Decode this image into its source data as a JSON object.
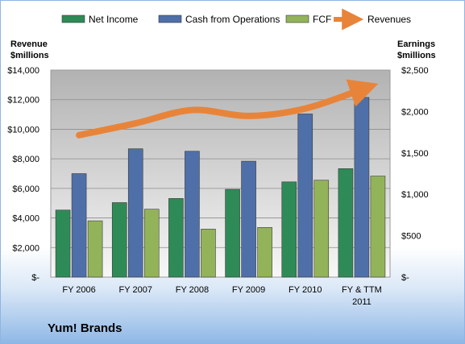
{
  "company_label": "Yum! Brands",
  "colors": {
    "net_income": "#2e8b57",
    "cash_ops": "#4f6fa8",
    "fcf": "#93b35a",
    "revenues": "#e8843a"
  },
  "chart_data": {
    "type": "bar",
    "categories": [
      "FY 2006",
      "FY 2007",
      "FY 2008",
      "FY 2009",
      "FY 2010",
      "FY & TTM 2011"
    ],
    "series": [
      {
        "name": "Net Income",
        "axis": "right",
        "kind": "bar",
        "values": [
          810,
          900,
          950,
          1060,
          1150,
          1310
        ]
      },
      {
        "name": "Cash from Operations",
        "axis": "right",
        "kind": "bar",
        "values": [
          1250,
          1550,
          1520,
          1400,
          1970,
          2170
        ]
      },
      {
        "name": "FCF",
        "axis": "right",
        "kind": "bar",
        "values": [
          680,
          820,
          580,
          600,
          1170,
          1220
        ]
      },
      {
        "name": "Revenues",
        "axis": "left",
        "kind": "line",
        "values": [
          9600,
          10400,
          11300,
          10900,
          11400,
          12700
        ]
      }
    ],
    "left_axis": {
      "label_line1": "Revenue",
      "label_line2": "$millions",
      "ylim": [
        0,
        14000
      ],
      "ticks": [
        {
          "value": 0,
          "label": "$-"
        },
        {
          "value": 2000,
          "label": "$2,000"
        },
        {
          "value": 4000,
          "label": "$4,000"
        },
        {
          "value": 6000,
          "label": "$6,000"
        },
        {
          "value": 8000,
          "label": "$8,000"
        },
        {
          "value": 10000,
          "label": "$10,000"
        },
        {
          "value": 12000,
          "label": "$12,000"
        },
        {
          "value": 14000,
          "label": "$14,000"
        }
      ]
    },
    "right_axis": {
      "label_line1": "Earnings",
      "label_line2": "$millions",
      "ylim": [
        0,
        2500
      ],
      "ticks": [
        {
          "value": 0,
          "label": "$-"
        },
        {
          "value": 500,
          "label": "$500"
        },
        {
          "value": 1000,
          "label": "$1,000"
        },
        {
          "value": 1500,
          "label": "$1,500"
        },
        {
          "value": 2000,
          "label": "$2,000"
        },
        {
          "value": 2500,
          "label": "$2,500"
        }
      ]
    },
    "grid": true,
    "legend_position": "top"
  }
}
